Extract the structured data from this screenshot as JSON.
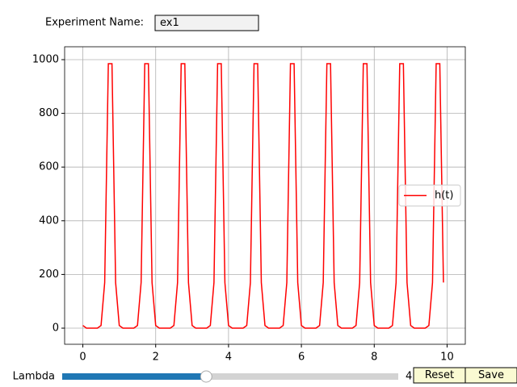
{
  "experiment": {
    "label": "Experiment Name:",
    "value": "ex1"
  },
  "slider": {
    "label": "Lambda",
    "value": 4,
    "min": 1,
    "max": 8
  },
  "buttons": [
    "Reset",
    "Save"
  ],
  "chart_data": {
    "type": "line",
    "x": [
      0,
      0.1,
      0.2,
      0.3,
      0.4,
      0.5,
      0.6,
      0.7,
      0.8,
      0.9,
      1,
      1.1,
      1.2,
      1.3,
      1.4,
      1.5,
      1.6,
      1.7,
      1.8,
      1.9,
      2,
      2.1,
      2.2,
      2.3,
      2.4,
      2.5,
      2.6,
      2.7,
      2.8,
      2.9,
      3,
      3.1,
      3.2,
      3.3,
      3.4,
      3.5,
      3.6,
      3.7,
      3.8,
      3.9,
      4,
      4.1,
      4.2,
      4.3,
      4.4,
      4.5,
      4.6,
      4.7,
      4.8,
      4.9,
      5,
      5.1,
      5.2,
      5.3,
      5.4,
      5.5,
      5.6,
      5.7,
      5.8,
      5.9,
      6,
      6.1,
      6.2,
      6.3,
      6.4,
      6.5,
      6.6,
      6.7,
      6.8,
      6.9,
      7,
      7.1,
      7.2,
      7.3,
      7.4,
      7.5,
      7.6,
      7.7,
      7.8,
      7.9,
      8,
      8.1,
      8.2,
      8.3,
      8.4,
      8.5,
      8.6,
      8.7,
      8.8,
      8.9,
      9,
      9.1,
      9.2,
      9.3,
      9.4,
      9.5,
      9.6,
      9.7,
      9.8,
      9.9
    ],
    "series": [
      {
        "name": "h(t)",
        "color": "#ff0000",
        "values": [
          10,
          0,
          0,
          0,
          0,
          10,
          170,
          985,
          985,
          170,
          10,
          0,
          0,
          0,
          0,
          10,
          170,
          985,
          985,
          170,
          10,
          0,
          0,
          0,
          0,
          10,
          170,
          985,
          985,
          170,
          10,
          0,
          0,
          0,
          0,
          10,
          170,
          985,
          985,
          170,
          10,
          0,
          0,
          0,
          0,
          10,
          170,
          985,
          985,
          170,
          10,
          0,
          0,
          0,
          0,
          10,
          170,
          985,
          985,
          170,
          10,
          0,
          0,
          0,
          0,
          10,
          170,
          985,
          985,
          170,
          10,
          0,
          0,
          0,
          0,
          10,
          170,
          985,
          985,
          170,
          10,
          0,
          0,
          0,
          0,
          10,
          170,
          985,
          985,
          170,
          10,
          0,
          0,
          0,
          0,
          10,
          170,
          985,
          985,
          170
        ]
      }
    ],
    "xlim": [
      -0.5,
      10.5
    ],
    "xticks": [
      0,
      2,
      4,
      6,
      8,
      10
    ],
    "ylim": [
      -60,
      1048
    ],
    "yticks": [
      0,
      200,
      400,
      600,
      800,
      1000
    ],
    "grid": true,
    "legend": "center right"
  }
}
